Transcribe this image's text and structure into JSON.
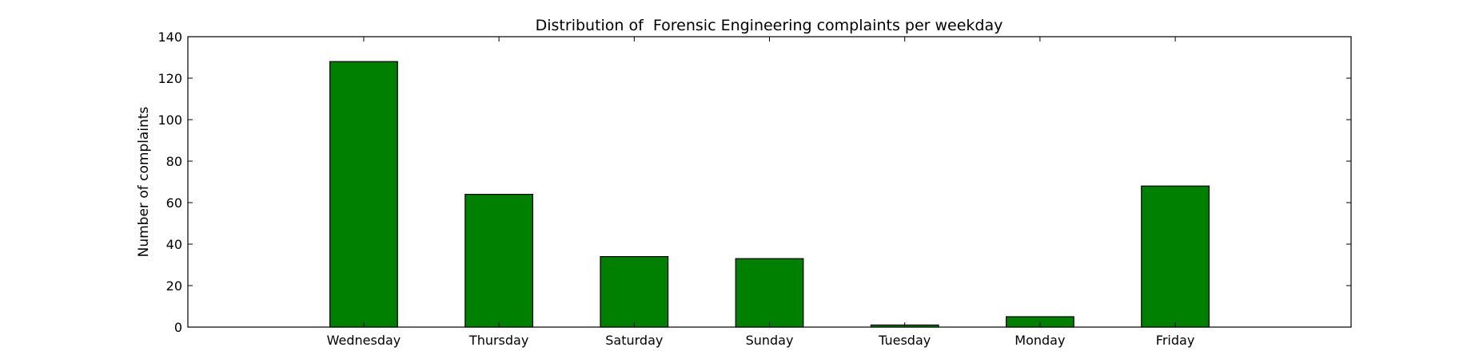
{
  "chart_data": {
    "type": "bar",
    "title": "Distribution of  Forensic Engineering complaints per weekday",
    "xlabel": "",
    "ylabel": "Number of complaints",
    "categories": [
      "Wednesday",
      "Thursday",
      "Saturday",
      "Sunday",
      "Tuesday",
      "Monday",
      "Friday"
    ],
    "values": [
      128,
      64,
      34,
      33,
      1,
      5,
      68
    ],
    "ylim": [
      0,
      140
    ],
    "yticks": [
      0,
      20,
      40,
      60,
      80,
      100,
      120,
      140
    ],
    "bar_color": "#008000",
    "bar_edge_color": "#000000",
    "grid": false,
    "legend": "none"
  }
}
